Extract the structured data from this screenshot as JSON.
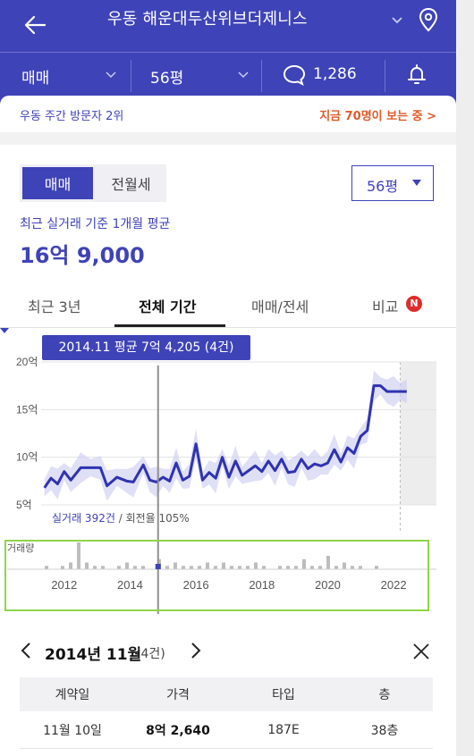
{
  "header": {
    "title": "우동 해운대두산위브더제니스",
    "trade_type": "매매",
    "size": "56평",
    "comment_count": "1,286"
  },
  "visitor": {
    "rank": "우동 주간 방문자 2위",
    "live": "지금 70명이 보는 중 >"
  },
  "summary": {
    "segments": [
      "매매",
      "전월세"
    ],
    "size_select": "56평",
    "avg_label": "최근 실거래 기준 1개월 평균",
    "avg_value": "16억 9,000"
  },
  "tabs": [
    {
      "label": "최근 3년"
    },
    {
      "label": "전체 기간"
    },
    {
      "label": "매매/전세"
    },
    {
      "label": "비교"
    }
  ],
  "tab_badge": "N",
  "chart": {
    "tooltip": "2014.11 평균 7억 4,205 (4건)",
    "legend_count": "실거래 392건",
    "legend_rate": " / 회전율 105%",
    "volume_label": "거래량"
  },
  "chart_data": {
    "type": "line",
    "y_ticks": [
      "20억",
      "15억",
      "10억",
      "5억"
    ],
    "ylim": [
      5,
      20
    ],
    "x_ticks": [
      "2012",
      "2014",
      "2016",
      "2018",
      "2020",
      "2022"
    ],
    "xlim": [
      2011.3,
      2023.3
    ],
    "series": [
      {
        "x": [
          2011.4,
          2011.6,
          2011.8,
          2012.0,
          2012.2,
          2012.5,
          2012.8,
          2013.1,
          2013.3,
          2013.6,
          2013.9,
          2014.1,
          2014.4,
          2014.6,
          2014.8,
          2015.0,
          2015.2,
          2015.4,
          2015.6,
          2015.8,
          2016.0,
          2016.2,
          2016.4,
          2016.6,
          2016.8,
          2017.0,
          2017.2,
          2017.4,
          2017.6,
          2017.8,
          2018.0,
          2018.2,
          2018.4,
          2018.6,
          2018.8,
          2019.0,
          2019.2,
          2019.4,
          2019.6,
          2019.8,
          2020.0,
          2020.2,
          2020.4,
          2020.6,
          2020.8,
          2021.0,
          2021.2,
          2021.4,
          2021.6,
          2021.8,
          2022.0,
          2022.2,
          2022.4
        ],
        "y": [
          6.8,
          7.8,
          7.2,
          8.5,
          7.6,
          8.9,
          8.9,
          8.9,
          7.0,
          7.9,
          7.5,
          7.4,
          9.2,
          7.6,
          7.4,
          7.9,
          7.5,
          9.4,
          7.6,
          8.0,
          11.4,
          7.6,
          8.4,
          7.8,
          10.0,
          7.9,
          9.6,
          8.1,
          8.6,
          9.1,
          8.5,
          9.6,
          8.6,
          9.8,
          8.4,
          8.5,
          9.8,
          8.8,
          9.3,
          9.1,
          9.4,
          10.8,
          9.5,
          11.0,
          10.4,
          12.2,
          12.8,
          17.5,
          17.5,
          16.9,
          16.9,
          16.9,
          16.9
        ]
      }
    ],
    "volume": [
      1,
      0,
      1,
      2,
      8,
      2,
      1,
      1,
      0,
      1,
      2,
      1,
      1,
      0,
      3,
      1,
      2,
      1,
      1,
      1,
      2,
      1,
      2,
      1,
      1,
      1,
      2,
      1,
      0,
      1,
      1,
      1,
      3,
      1,
      1,
      4,
      1,
      2,
      1,
      1,
      0,
      1
    ],
    "selected_x": 2014.85,
    "forecast_from": 2022.2
  },
  "detail": {
    "title": "2014년 11월",
    "count": "(4건)",
    "columns": [
      "계약일",
      "가격",
      "타입",
      "층"
    ],
    "rows": [
      {
        "date": "11월 10일",
        "price": "8억 2,640",
        "type": "187E",
        "floor": "38층"
      }
    ]
  },
  "colors": {
    "brand": "#3f43b8",
    "highlight": "#e05a2b",
    "badge": "#e02b2b",
    "focus_box": "#8ed44a"
  }
}
